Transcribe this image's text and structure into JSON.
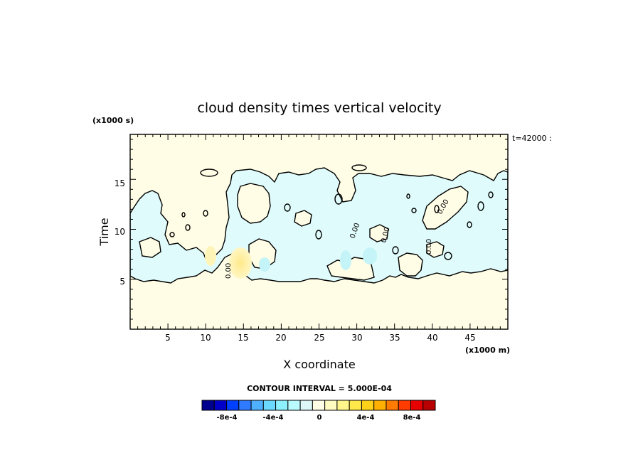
{
  "chart_data": {
    "type": "heatmap",
    "title": "cloud density times vertical velocity",
    "xlabel": "X coordinate",
    "ylabel": "Time",
    "x_units": "(x1000 m)",
    "y_units": "(x1000 s)",
    "time_annotation": "t=42000 :",
    "xlim": [
      0,
      50
    ],
    "ylim": [
      0,
      19.5
    ],
    "x_ticks": [
      5,
      10,
      15,
      20,
      25,
      30,
      35,
      40,
      45
    ],
    "y_ticks": [
      5,
      10,
      15
    ],
    "contour_interval_label": "CONTOUR INTERVAL = 5.000E-04",
    "contour_label": "0.00",
    "grid": false,
    "background_value": 0,
    "regions": [
      {
        "name": "negative-cloud-layer",
        "value": -0.0001,
        "x_range": [
          0,
          50
        ],
        "y_range": [
          5,
          16.3
        ],
        "color": "#e0fbfb"
      },
      {
        "name": "positive-updraft",
        "value": 0.0002,
        "x_center": 14.7,
        "y_center": 6.8,
        "color": "#fff3a6"
      },
      {
        "name": "negative-core-a",
        "value": -0.0002,
        "x_center": 28.5,
        "y_center": 7.0,
        "color": "#bff4f6"
      },
      {
        "name": "negative-core-b",
        "value": -0.0002,
        "x_center": 33.5,
        "y_center": 7.3,
        "color": "#bff4f6"
      }
    ],
    "colorbar": {
      "colors": [
        "#00008f",
        "#0000c8",
        "#0040ff",
        "#2e7bff",
        "#4fb0ff",
        "#6ad8ff",
        "#8cf0ff",
        "#b9fbff",
        "#def8fa",
        "#fffde6",
        "#fffac0",
        "#fff58a",
        "#ffe84a",
        "#ffd21a",
        "#ffb000",
        "#ff7a00",
        "#ff3c00",
        "#e60000",
        "#b80000"
      ],
      "tick_labels": [
        "-8e-4",
        "-4e-4",
        "0",
        "4e-4",
        "8e-4"
      ],
      "tick_values": [
        -0.0008,
        -0.0004,
        0,
        0.0004,
        0.0008
      ],
      "range": [
        -0.00095,
        0.00095
      ]
    },
    "colors": {
      "background": "#fffde6",
      "negative_fill": "#e0fbfb",
      "contour": "#000000"
    }
  }
}
